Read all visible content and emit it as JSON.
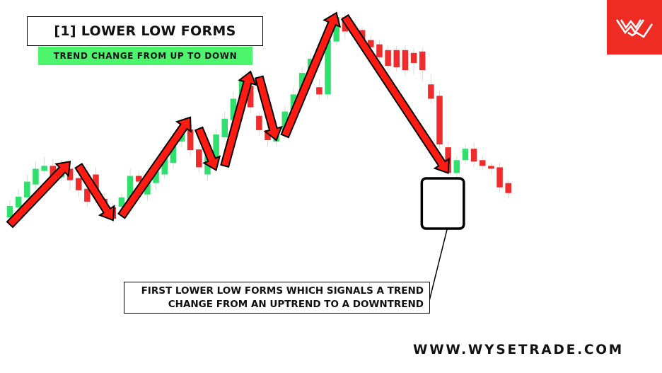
{
  "title": "[1] LOWER LOW FORMS",
  "subtitle": "TREND CHANGE FROM UP TO DOWN",
  "callout": {
    "line1": "FIRST LOWER LOW FORMS WHICH SIGNALS A TREND",
    "line2": "CHANGE FROM AN UPTREND TO A DOWNTREND"
  },
  "website": "WWW.WYSETRADE.COM",
  "logo_icon": "wysetrade-w-logo-icon",
  "colors": {
    "bull": "#2fe06c",
    "bear": "#f02b2b",
    "arrow_fill": "#ff1a12",
    "subtitle_bg": "#4cf56b",
    "logo_bg": "#ee2c24"
  },
  "chart_data": {
    "type": "candlestick",
    "bull_color": "#2fe06c",
    "bear_color": "#f02b2b",
    "candles": [
      {
        "d": "bull",
        "o": 90,
        "c": 106,
        "h": 114,
        "l": 78
      },
      {
        "d": "bull",
        "o": 104,
        "c": 119,
        "h": 130,
        "l": 98
      },
      {
        "d": "bull",
        "o": 118,
        "c": 140,
        "h": 150,
        "l": 112
      },
      {
        "d": "bull",
        "o": 136,
        "c": 158,
        "h": 168,
        "l": 130
      },
      {
        "d": "bull",
        "o": 155,
        "c": 162,
        "h": 175,
        "l": 150
      },
      {
        "d": "bear",
        "o": 162,
        "c": 145,
        "h": 172,
        "l": 138
      },
      {
        "d": "bull",
        "o": 146,
        "c": 160,
        "h": 170,
        "l": 140
      },
      {
        "d": "bear",
        "o": 158,
        "c": 142,
        "h": 165,
        "l": 128
      },
      {
        "d": "bear",
        "o": 145,
        "c": 128,
        "h": 150,
        "l": 118
      },
      {
        "d": "bear",
        "o": 130,
        "c": 112,
        "h": 140,
        "l": 105
      },
      {
        "d": "bear",
        "o": 150,
        "c": 118,
        "h": 160,
        "l": 110
      },
      {
        "d": "bear",
        "o": 116,
        "c": 102,
        "h": 124,
        "l": 92
      },
      {
        "d": "bear",
        "o": 104,
        "c": 88,
        "h": 110,
        "l": 82
      },
      {
        "d": "bull",
        "o": 105,
        "c": 118,
        "h": 125,
        "l": 96
      },
      {
        "d": "bull",
        "o": 112,
        "c": 148,
        "h": 158,
        "l": 102
      },
      {
        "d": "bear",
        "o": 148,
        "c": 140,
        "h": 155,
        "l": 118
      },
      {
        "d": "bull",
        "o": 122,
        "c": 140,
        "h": 150,
        "l": 113
      },
      {
        "d": "bull",
        "o": 138,
        "c": 154,
        "h": 160,
        "l": 128
      },
      {
        "d": "bull",
        "o": 150,
        "c": 172,
        "h": 180,
        "l": 144
      },
      {
        "d": "bull",
        "o": 166,
        "c": 200,
        "h": 208,
        "l": 158
      },
      {
        "d": "bull",
        "o": 196,
        "c": 214,
        "h": 224,
        "l": 188
      },
      {
        "d": "bear",
        "o": 213,
        "c": 184,
        "h": 220,
        "l": 175
      },
      {
        "d": "bear",
        "o": 185,
        "c": 160,
        "h": 192,
        "l": 152
      },
      {
        "d": "bull",
        "o": 150,
        "c": 176,
        "h": 185,
        "l": 142
      },
      {
        "d": "bull",
        "o": 168,
        "c": 206,
        "h": 214,
        "l": 160
      },
      {
        "d": "bull",
        "o": 202,
        "c": 228,
        "h": 238,
        "l": 196
      },
      {
        "d": "bull",
        "o": 226,
        "c": 256,
        "h": 266,
        "l": 220
      },
      {
        "d": "bull",
        "o": 252,
        "c": 282,
        "h": 290,
        "l": 246
      },
      {
        "d": "bear",
        "o": 274,
        "c": 244,
        "h": 282,
        "l": 236
      },
      {
        "d": "bear",
        "o": 232,
        "c": 212,
        "h": 238,
        "l": 204
      },
      {
        "d": "bear",
        "o": 212,
        "c": 198,
        "h": 218,
        "l": 190
      },
      {
        "d": "bull",
        "o": 196,
        "c": 214,
        "h": 222,
        "l": 190
      },
      {
        "d": "bull",
        "o": 208,
        "c": 238,
        "h": 246,
        "l": 200
      },
      {
        "d": "bull",
        "o": 236,
        "c": 262,
        "h": 272,
        "l": 230
      },
      {
        "d": "bull",
        "o": 260,
        "c": 292,
        "h": 300,
        "l": 252
      },
      {
        "d": "bull",
        "o": 290,
        "c": 312,
        "h": 320,
        "l": 284
      },
      {
        "d": "bear",
        "o": 272,
        "c": 262,
        "h": 282,
        "l": 254
      },
      {
        "d": "bull",
        "o": 262,
        "c": 338,
        "h": 346,
        "l": 256
      },
      {
        "d": "bull",
        "o": 336,
        "c": 370,
        "h": 380,
        "l": 330
      },
      {
        "d": "bear",
        "o": 370,
        "c": 350,
        "h": 378,
        "l": 340
      },
      {
        "d": "bear",
        "o": 354,
        "c": 348,
        "h": 360,
        "l": 342
      },
      {
        "d": "bear",
        "o": 352,
        "c": 336,
        "h": 356,
        "l": 330
      },
      {
        "d": "bear",
        "o": 338,
        "c": 328,
        "h": 344,
        "l": 322
      },
      {
        "d": "bear",
        "o": 332,
        "c": 314,
        "h": 338,
        "l": 308
      },
      {
        "d": "bear",
        "o": 324,
        "c": 302,
        "h": 330,
        "l": 296
      },
      {
        "d": "bear",
        "o": 324,
        "c": 300,
        "h": 330,
        "l": 294
      },
      {
        "d": "bear",
        "o": 324,
        "c": 296,
        "h": 330,
        "l": 288
      },
      {
        "d": "bear",
        "o": 320,
        "c": 306,
        "h": 326,
        "l": 290
      },
      {
        "d": "bear",
        "o": 322,
        "c": 296,
        "h": 328,
        "l": 280
      },
      {
        "d": "bear",
        "o": 276,
        "c": 256,
        "h": 290,
        "l": 250
      },
      {
        "d": "bear",
        "o": 260,
        "c": 192,
        "h": 268,
        "l": 186
      },
      {
        "d": "bear",
        "o": 188,
        "c": 152,
        "h": 196,
        "l": 148
      },
      {
        "d": "bull",
        "o": 152,
        "c": 170,
        "h": 175,
        "l": 145
      },
      {
        "d": "bull",
        "o": 170,
        "c": 186,
        "h": 192,
        "l": 164
      },
      {
        "d": "bear",
        "o": 186,
        "c": 168,
        "h": 195,
        "l": 160
      },
      {
        "d": "bear",
        "o": 170,
        "c": 162,
        "h": 176,
        "l": 156
      },
      {
        "d": "bear",
        "o": 162,
        "c": 158,
        "h": 166,
        "l": 150
      },
      {
        "d": "bear",
        "o": 160,
        "c": 132,
        "h": 166,
        "l": 126
      },
      {
        "d": "bear",
        "o": 138,
        "c": 124,
        "h": 142,
        "l": 116
      }
    ],
    "swing_arrows": [
      {
        "from": [
          0,
          80
        ],
        "to": [
          7,
          168
        ]
      },
      {
        "from": [
          8,
          162
        ],
        "to": [
          12,
          86
        ]
      },
      {
        "from": [
          13,
          92
        ],
        "to": [
          21,
          230
        ]
      },
      {
        "from": [
          22,
          214
        ],
        "to": [
          24,
          156
        ]
      },
      {
        "from": [
          25,
          162
        ],
        "to": [
          28,
          294
        ]
      },
      {
        "from": [
          29,
          286
        ],
        "to": [
          31,
          198
        ]
      },
      {
        "from": [
          32,
          204
        ],
        "to": [
          38,
          376
        ]
      },
      {
        "from": [
          39,
          370
        ],
        "to": [
          51,
          152
        ]
      }
    ],
    "highlight_box": {
      "label": "first-lower-low",
      "candles": [
        49,
        52
      ]
    }
  }
}
